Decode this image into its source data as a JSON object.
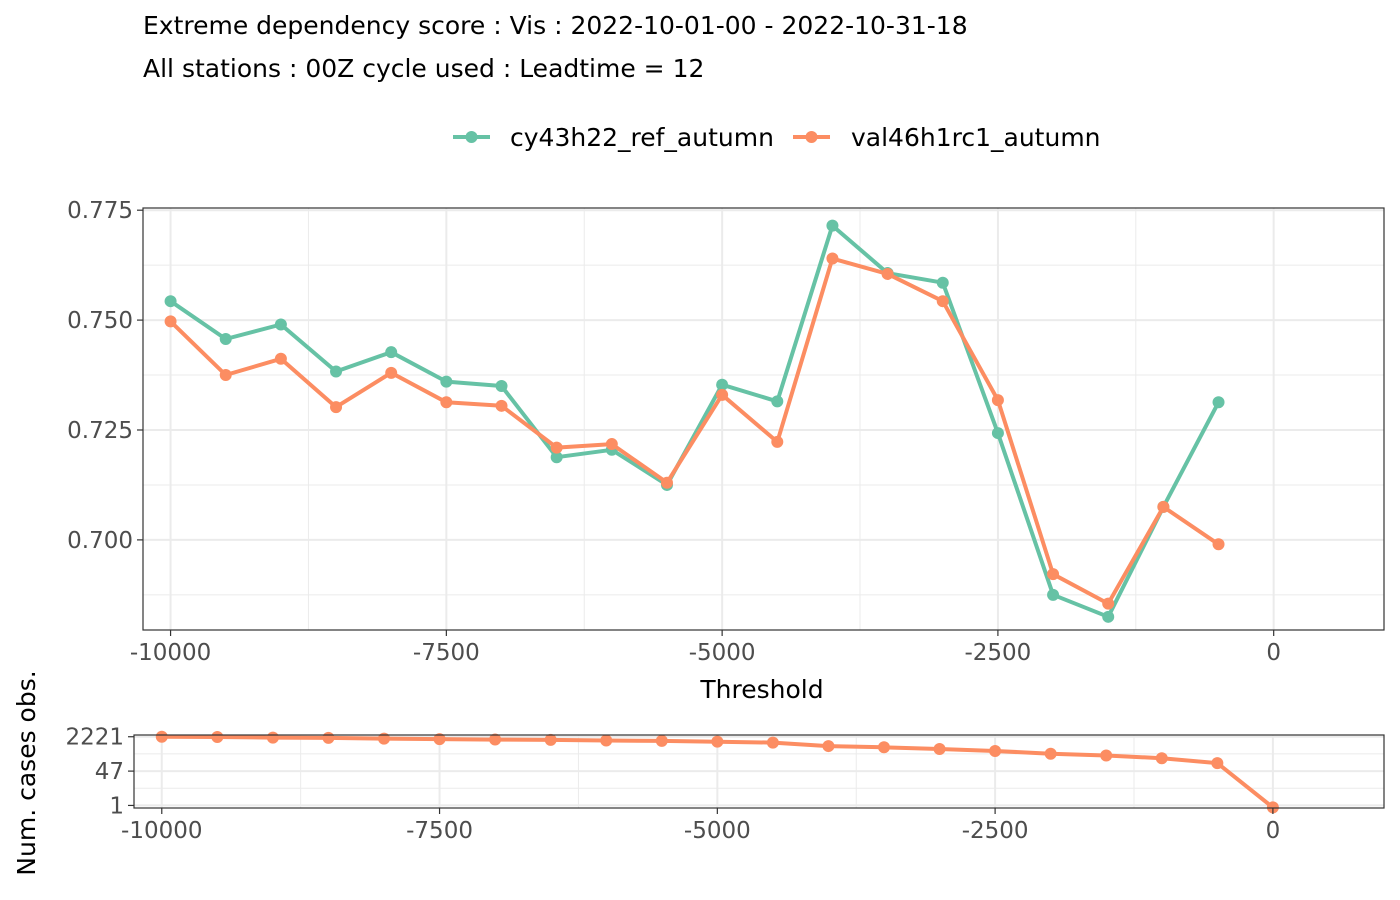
{
  "chart_data": [
    {
      "type": "line",
      "title": "Extreme dependency score : Vis : 2022-10-01-00 - 2022-10-31-18",
      "subtitle": "All stations : 00Z cycle used : Leadtime = 12",
      "xlabel": "Threshold",
      "ylabel": "",
      "xlim": [
        -10250,
        1000
      ],
      "ylim": [
        0.6795,
        0.7755
      ],
      "x_ticks": [
        -10000,
        -7500,
        -5000,
        -2500,
        0
      ],
      "x_tick_labels": [
        "-10000",
        "-7500",
        "-5000",
        "-2500",
        "0"
      ],
      "y_ticks": [
        0.7,
        0.725,
        0.75,
        0.775
      ],
      "y_tick_labels": [
        "0.700",
        "0.725",
        "0.750",
        "0.775"
      ],
      "grid": true,
      "legend_position": "top",
      "x": [
        -10000,
        -9500,
        -9000,
        -8500,
        -8000,
        -7500,
        -7000,
        -6500,
        -6000,
        -5500,
        -5000,
        -4500,
        -4000,
        -3500,
        -3000,
        -2500,
        -2000,
        -1500,
        -1000,
        -500
      ],
      "series": [
        {
          "name": "cy43h22_ref_autumn",
          "color": "#66c2a5",
          "values": [
            0.7543,
            0.7457,
            0.749,
            0.7383,
            0.7427,
            0.736,
            0.735,
            0.7188,
            0.7205,
            0.7125,
            0.7353,
            0.7315,
            0.7715,
            0.7607,
            0.7585,
            0.7243,
            0.6875,
            0.6825,
            0.7075,
            0.7313
          ]
        },
        {
          "name": "val46h1rc1_autumn",
          "color": "#fc8d62",
          "values": [
            0.7497,
            0.7375,
            0.7412,
            0.7302,
            0.738,
            0.7313,
            0.7305,
            0.721,
            0.7218,
            0.713,
            0.733,
            0.7223,
            0.764,
            0.7605,
            0.7543,
            0.7318,
            0.6922,
            0.6855,
            0.7075,
            0.699
          ]
        }
      ]
    },
    {
      "type": "line",
      "title": "",
      "xlabel": "",
      "ylabel": "Num. cases obs.",
      "xlim": [
        -10250,
        1000
      ],
      "y_scale": "log",
      "ylim": [
        0.75,
        2700
      ],
      "x_ticks": [
        -10000,
        -7500,
        -5000,
        -2500,
        0
      ],
      "x_tick_labels": [
        "-10000",
        "-7500",
        "-5000",
        "-2500",
        "0"
      ],
      "y_ticks": [
        1,
        47,
        2221
      ],
      "y_tick_labels": [
        "1",
        "47",
        "2221"
      ],
      "grid": true,
      "x": [
        -10000,
        -9500,
        -9000,
        -8500,
        -8000,
        -7500,
        -7000,
        -6500,
        -6000,
        -5500,
        -5000,
        -4500,
        -4000,
        -3500,
        -3000,
        -2500,
        -2000,
        -1500,
        -1000,
        -500,
        0
      ],
      "series": [
        {
          "name": "val46h1rc1_autumn",
          "color": "#fc8d62",
          "values": [
            2221,
            2150,
            2020,
            1950,
            1800,
            1700,
            1620,
            1560,
            1460,
            1400,
            1280,
            1150,
            780,
            680,
            560,
            450,
            330,
            270,
            200,
            115,
            0.8
          ]
        }
      ]
    }
  ]
}
